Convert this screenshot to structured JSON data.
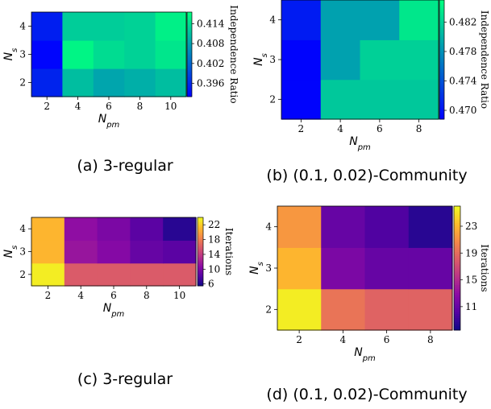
{
  "chart_data": [
    {
      "type": "heatmap",
      "panel_caption": "(a) 3-regular",
      "xlabel": "N_pm",
      "ylabel": "N_s",
      "x": [
        2,
        4,
        6,
        8,
        10
      ],
      "y": [
        2,
        3,
        4
      ],
      "values": [
        [
          0.3955,
          0.411,
          0.4085,
          0.4095,
          0.411
        ],
        [
          0.3925,
          0.4165,
          0.414,
          0.413,
          0.415
        ],
        [
          0.395,
          0.4125,
          0.4125,
          0.413,
          0.416
        ]
      ],
      "colorbar": {
        "label": "Independence Ratio",
        "ticks": [
          "0.396",
          "0.402",
          "0.408",
          "0.414"
        ],
        "range": [
          0.392,
          0.4175
        ]
      },
      "colormap": "winter"
    },
    {
      "type": "heatmap",
      "panel_caption": "(b) (0.1, 0.02)-Community",
      "xlabel": "N_pm",
      "ylabel": "N_s",
      "x": [
        2,
        4,
        6,
        8
      ],
      "y": [
        2,
        3,
        4
      ],
      "values": [
        [
          0.469,
          0.4815,
          0.4815,
          0.4815
        ],
        [
          0.469,
          0.479,
          0.482,
          0.482
        ],
        [
          0.4705,
          0.479,
          0.479,
          0.4835
        ]
      ],
      "colorbar": {
        "label": "Independence Ratio",
        "ticks": [
          "0.470",
          "0.474",
          "0.478",
          "0.482"
        ],
        "range": [
          0.4688,
          0.485
        ]
      },
      "colormap": "winter"
    },
    {
      "type": "heatmap",
      "panel_caption": "(c) 3-regular",
      "xlabel": "N_pm",
      "ylabel": "N_s",
      "x": [
        2,
        4,
        6,
        8,
        10
      ],
      "y": [
        2,
        3,
        4
      ],
      "values": [
        [
          23.5,
          16.0,
          16.0,
          16.0,
          16.0
        ],
        [
          21.0,
          11.5,
          10.5,
          9.0,
          8.5
        ],
        [
          21.0,
          11.0,
          10.0,
          8.5,
          6.5
        ]
      ],
      "colorbar": {
        "label": "Iterations",
        "ticks": [
          "6",
          "10",
          "14",
          "18",
          "22"
        ],
        "range": [
          5.5,
          24.0
        ]
      },
      "colormap": "plasma"
    },
    {
      "type": "heatmap",
      "panel_caption": "(d) (0.1, 0.02)-Community",
      "xlabel": "N_pm",
      "ylabel": "N_s",
      "x": [
        2,
        4,
        6,
        8
      ],
      "y": [
        2,
        3,
        4
      ],
      "values": [
        [
          25.5,
          19.5,
          18.5,
          18.5
        ],
        [
          23.0,
          12.0,
          11.0,
          11.0
        ],
        [
          21.5,
          11.0,
          10.0,
          8.5
        ]
      ],
      "colorbar": {
        "label": "Iterations",
        "ticks": [
          "11",
          "15",
          "19",
          "23"
        ],
        "range": [
          7.5,
          26.0
        ]
      },
      "colormap": "plasma"
    }
  ]
}
